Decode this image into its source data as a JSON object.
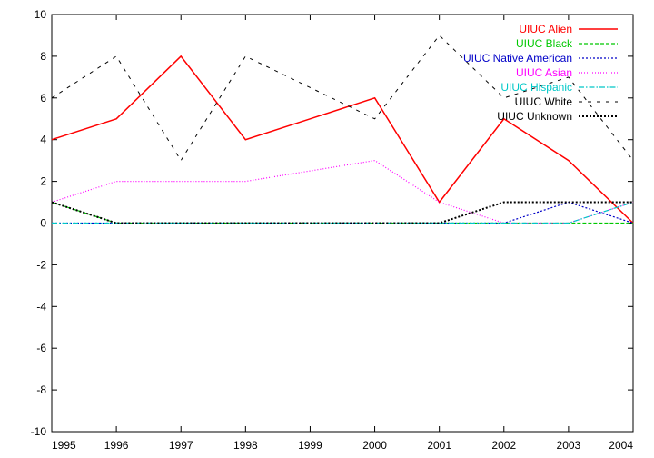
{
  "chart_data": {
    "type": "line",
    "title": "",
    "xlabel": "",
    "ylabel": "",
    "x": [
      1995,
      1996,
      1997,
      1998,
      1999,
      2000,
      2001,
      2002,
      2003,
      2004
    ],
    "xlim": [
      1995,
      2004
    ],
    "ylim": [
      -10,
      10
    ],
    "x_ticks": [
      "1995",
      "1996",
      "1997",
      "1998",
      "1999",
      "2000",
      "2001",
      "2002",
      "2003",
      "2004"
    ],
    "y_ticks": [
      "-10",
      "-8",
      "-6",
      "-4",
      "-2",
      "0",
      "2",
      "4",
      "6",
      "8",
      "10"
    ],
    "grid": false,
    "legend_position": "top-right",
    "series": [
      {
        "name": "UIUC Alien",
        "color": "#ff0000",
        "dash": "solid",
        "values": [
          4,
          5,
          8,
          4,
          5,
          6,
          1,
          5,
          3,
          0
        ]
      },
      {
        "name": "UIUC Black",
        "color": "#00c800",
        "dash": "dashed",
        "values": [
          1,
          0,
          0,
          0,
          0,
          0,
          0,
          0,
          0,
          0
        ]
      },
      {
        "name": "UIUC Native American",
        "color": "#0000c8",
        "dash": "dotted",
        "values": [
          0,
          0,
          0,
          0,
          0,
          0,
          0,
          0,
          1,
          0
        ]
      },
      {
        "name": "UIUC Asian",
        "color": "#ff00ff",
        "dash": "dotted-fine",
        "values": [
          1,
          2,
          2,
          2,
          2.5,
          3,
          1,
          0,
          0,
          1
        ]
      },
      {
        "name": "UIUC Hispanic",
        "color": "#00c8c8",
        "dash": "dashdot",
        "values": [
          0,
          0,
          0,
          0,
          0,
          0,
          0,
          0,
          0,
          1
        ]
      },
      {
        "name": "UIUC White",
        "color": "#000000",
        "dash": "long-dashed",
        "values": [
          6,
          8,
          3,
          8,
          6.5,
          5,
          9,
          6,
          7,
          3
        ]
      },
      {
        "name": "UIUC Unknown",
        "color": "#000000",
        "dash": "dotted-bold",
        "values": [
          1,
          0,
          0,
          0,
          0,
          0,
          0,
          1,
          1,
          1
        ]
      }
    ]
  }
}
